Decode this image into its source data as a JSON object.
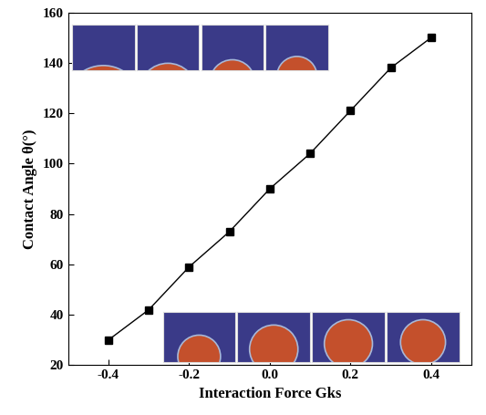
{
  "chart_data": {
    "type": "line",
    "x_label": "Interaction Force Gks",
    "y_label": "Contact Angle θ(°)",
    "x": [
      -0.4,
      -0.3,
      -0.2,
      -0.1,
      0.0,
      0.1,
      0.2,
      0.3,
      0.4
    ],
    "values": [
      30,
      42,
      59,
      73,
      90,
      104,
      121,
      138,
      150
    ],
    "color": "#000000",
    "marker": "square",
    "line_style": "solid",
    "xlim": [
      -0.5,
      0.5
    ],
    "xticks": [
      -0.4,
      -0.2,
      0.0,
      0.2,
      0.4
    ],
    "ylim": [
      20,
      160
    ],
    "yticks": [
      20,
      40,
      60,
      80,
      100,
      120,
      140,
      160
    ],
    "grid": false
  }
}
